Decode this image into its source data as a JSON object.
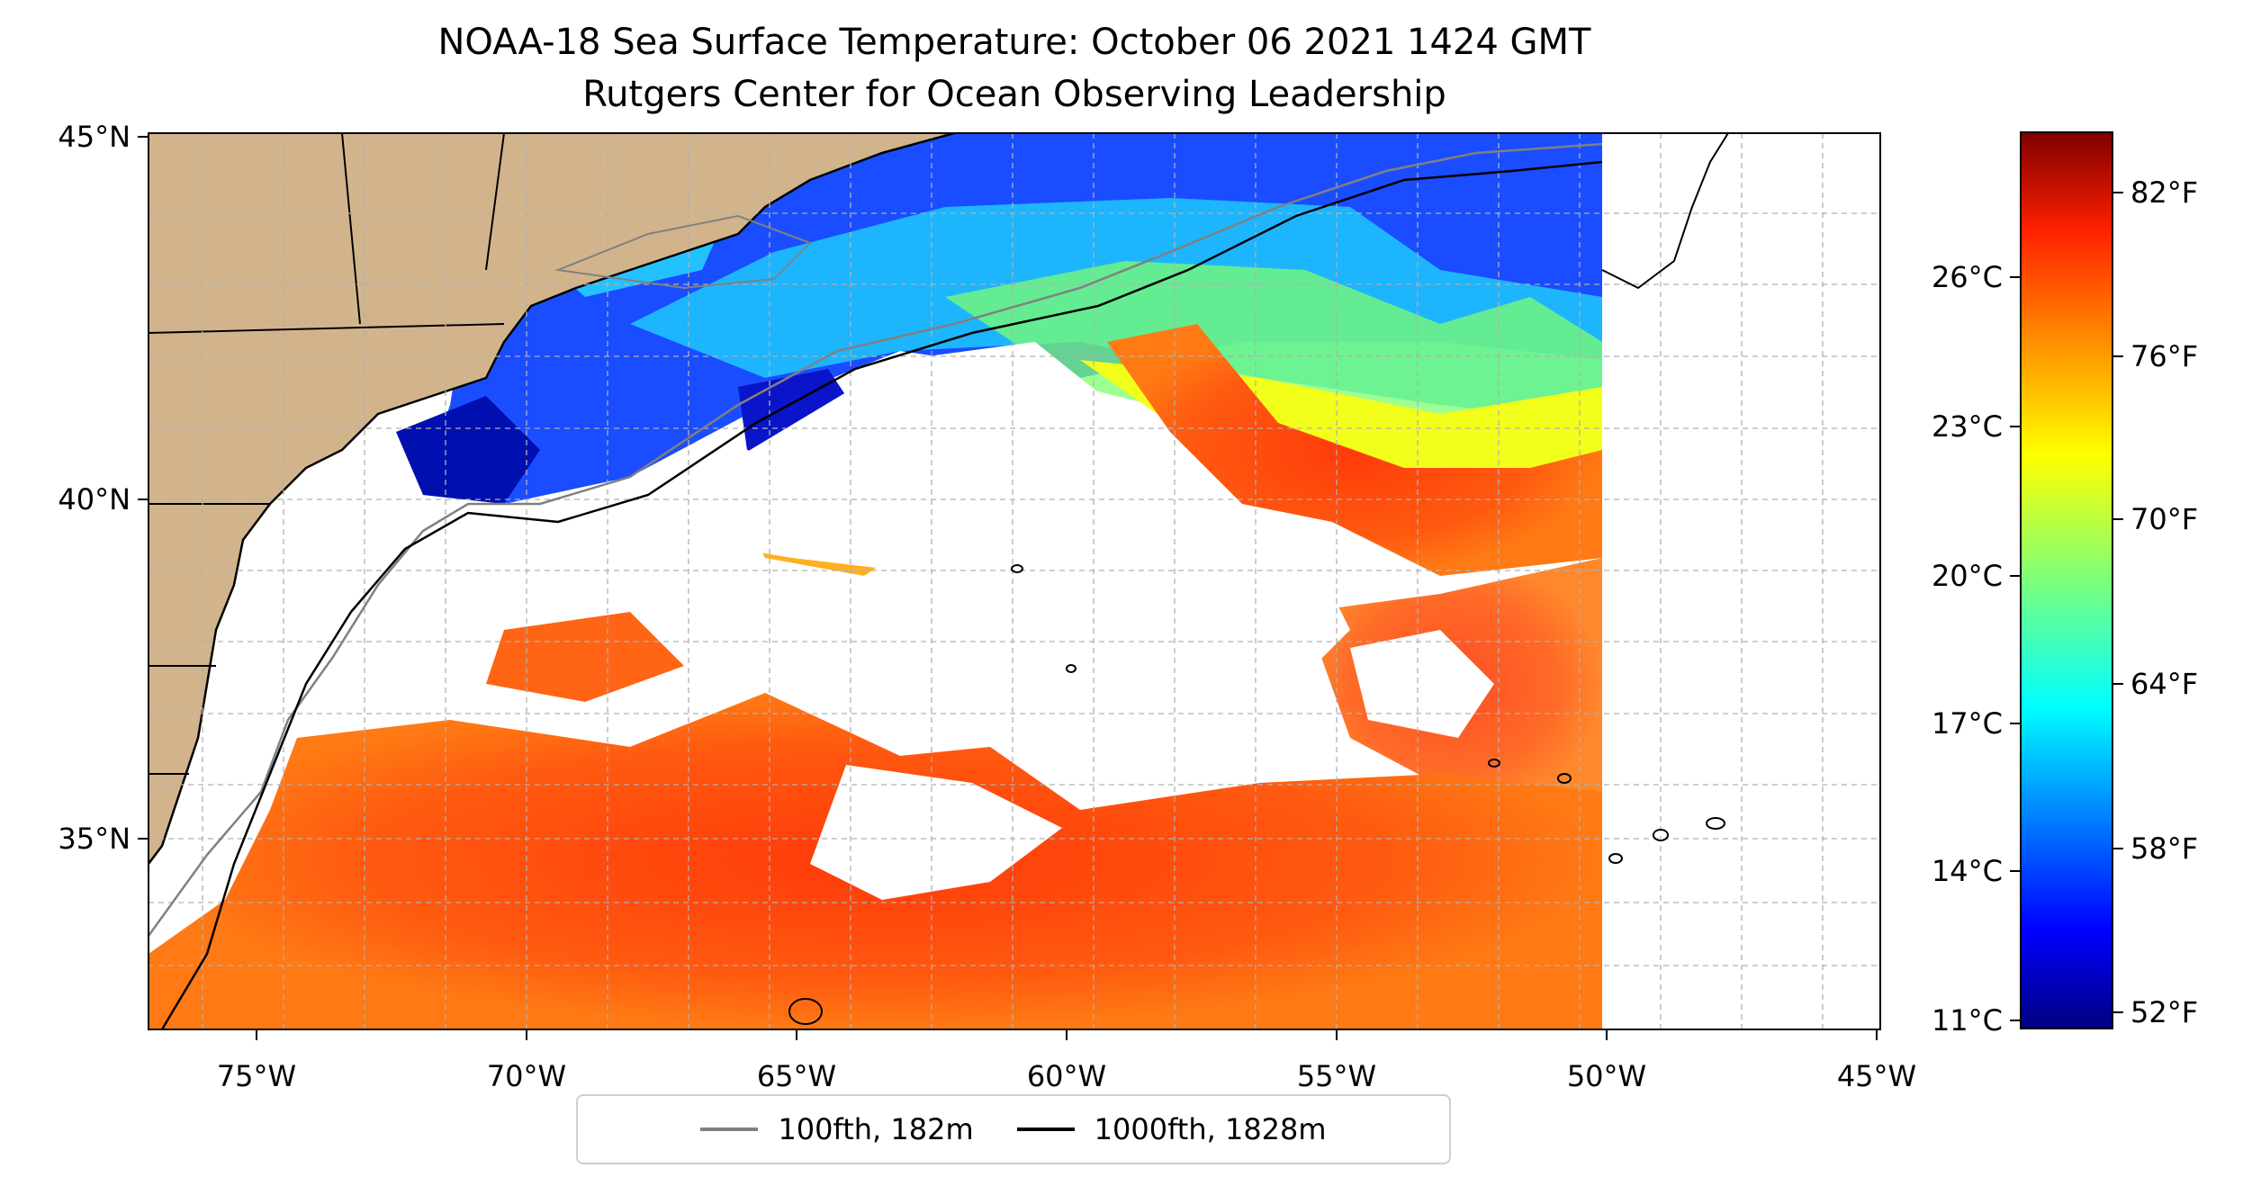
{
  "title": "NOAA-18 Sea Surface Temperature: October 06 2021 1424 GMT",
  "subtitle": "Rutgers Center for Ocean Observing Leadership",
  "map": {
    "lon_range": [
      -77,
      -45
    ],
    "lat_range": [
      32.5,
      45
    ],
    "lon_ticks": [
      "75°W",
      "70°W",
      "65°W",
      "60°W",
      "55°W",
      "50°W",
      "45°W"
    ],
    "lat_ticks": [
      "35°N",
      "40°N",
      "45°N"
    ],
    "land_color": "#d2b48c",
    "gridlines": "dashed grey",
    "data_east_limit_lon": -50
  },
  "legend": {
    "placement": "bottom-center",
    "items": [
      {
        "label": "100fth, 182m",
        "color": "#808080"
      },
      {
        "label": "1000fth, 1828m",
        "color": "#000000"
      }
    ]
  },
  "colorbar": {
    "colormap": "jet",
    "celsius_ticks": [
      "26°C",
      "23°C",
      "20°C",
      "17°C",
      "14°C",
      "11°C"
    ],
    "fahrenheit_ticks": [
      "82°F",
      "76°F",
      "70°F",
      "64°F",
      "58°F",
      "52°F"
    ],
    "range_f": [
      51,
      85
    ]
  }
}
